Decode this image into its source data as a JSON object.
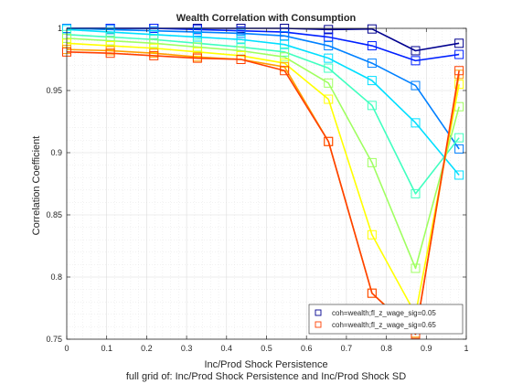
{
  "chart_data": {
    "type": "line",
    "title": "Wealth Correlation with Consumption",
    "xlabel": "Inc/Prod Shock Persistence",
    "ylabel": "Correlation Coefficient",
    "footnote": "full grid of: Inc/Prod Shock Persistence and Inc/Prod Shock SD",
    "xlim": [
      0,
      1
    ],
    "ylim": [
      0.75,
      1.0
    ],
    "x_ticks": [
      "0",
      "0.1",
      "0.2",
      "0.3",
      "0.4",
      "0.5",
      "0.6",
      "0.7",
      "0.8",
      "0.9",
      "1"
    ],
    "y_ticks": [
      "0.75",
      "0.8",
      "0.85",
      "0.9",
      "0.95",
      "1"
    ],
    "x_tick_values": [
      0,
      0.1,
      0.2,
      0.3,
      0.4,
      0.5,
      0.6,
      0.7,
      0.8,
      0.9,
      1.0
    ],
    "y_tick_values": [
      0.75,
      0.8,
      0.85,
      0.9,
      0.95,
      1.0
    ],
    "grid": true,
    "minor_grid": true,
    "marker": "square",
    "x": [
      0.0,
      0.109,
      0.218,
      0.327,
      0.436,
      0.545,
      0.655,
      0.764,
      0.873,
      0.982
    ],
    "series": [
      {
        "color": "#00008f",
        "values": [
          1.0,
          1.0,
          1.0,
          1.0,
          1.0,
          1.0,
          0.999,
          0.9995,
          0.982,
          0.988
        ]
      },
      {
        "color": "#0020ff",
        "values": [
          1.0,
          1.0,
          1.0,
          0.999,
          0.998,
          0.997,
          0.993,
          0.986,
          0.974,
          0.979
        ]
      },
      {
        "color": "#0080ff",
        "values": [
          1.0,
          0.999,
          0.998,
          0.997,
          0.996,
          0.994,
          0.986,
          0.972,
          0.954,
          0.903
        ]
      },
      {
        "color": "#00dfff",
        "values": [
          0.999,
          0.997,
          0.995,
          0.993,
          0.991,
          0.987,
          0.976,
          0.958,
          0.924,
          0.882
        ]
      },
      {
        "color": "#40ffbf",
        "values": [
          0.995,
          0.993,
          0.991,
          0.988,
          0.985,
          0.981,
          0.968,
          0.938,
          0.867,
          0.912
        ]
      },
      {
        "color": "#9fff60",
        "values": [
          0.992,
          0.99,
          0.988,
          0.985,
          0.982,
          0.977,
          0.956,
          0.892,
          0.807,
          0.937
        ]
      },
      {
        "color": "#ffff00",
        "values": [
          0.988,
          0.986,
          0.984,
          0.981,
          0.978,
          0.972,
          0.943,
          0.834,
          0.77,
          0.955
        ]
      },
      {
        "color": "#ffa000",
        "values": [
          0.983,
          0.982,
          0.98,
          0.977,
          0.975,
          0.969,
          0.909,
          0.787,
          0.755,
          0.963
        ]
      },
      {
        "color": "#ff4000",
        "values": [
          0.981,
          0.98,
          0.978,
          0.976,
          0.975,
          0.966,
          0.909,
          0.787,
          0.754,
          0.966
        ]
      }
    ],
    "legend": {
      "position": "bottom-right",
      "entries": [
        {
          "label": "coh=wealth;fl_z_wage_sig=0.05",
          "color": "#00008f"
        },
        {
          "label": "coh=wealth;fl_z_wage_sig=0.65",
          "color": "#ff4000"
        }
      ]
    }
  }
}
